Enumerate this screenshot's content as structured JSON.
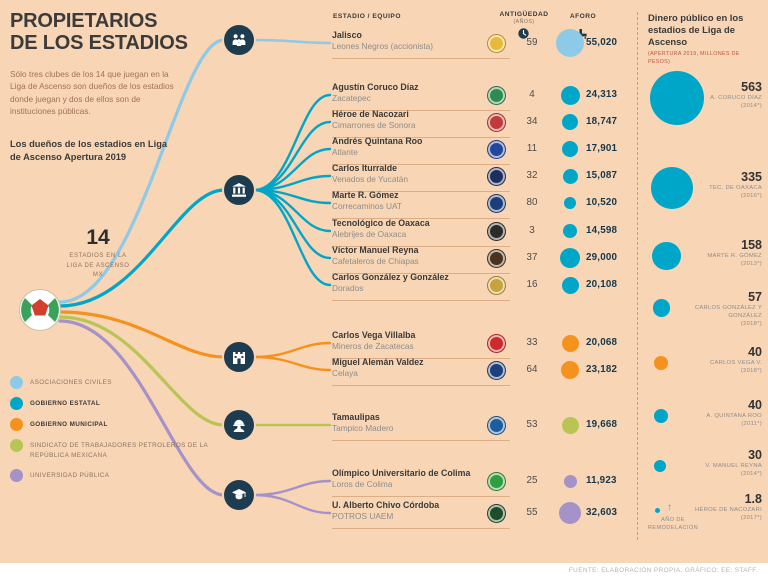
{
  "header": {
    "title_line1": "PROPIETARIOS",
    "title_line2": "DE LOS ESTADIOS",
    "intro": "Sólo tres clubes de los 14 que juegan en la Liga de Ascenso son dueños de los estadios donde juegan y dos de ellos son de instituciones públicas.",
    "subtitle": "Los dueños de los estadios en Liga de Ascenso Apertura 2019"
  },
  "stat": {
    "value": "14",
    "label": "ESTADIOS EN LA LIGA DE ASCENSO MX"
  },
  "columns": {
    "stadium": "ESTADIO / EQUIPO",
    "age": "ANTIGÜEDAD",
    "age_sub": "(AÑOS)",
    "capacity": "AFORO"
  },
  "legend": [
    {
      "label": "ASOCIACIONES CIVILES",
      "color": "#8ccae8",
      "emphasis": false
    },
    {
      "label": "GOBIERNO ESTATAL",
      "color": "#00a6c8",
      "emphasis": true
    },
    {
      "label": "GOBIERNO MUNICIPAL",
      "color": "#f5921e",
      "emphasis": true
    },
    {
      "label": "SINDICATO DE TRABAJADORES PETROLEROS DE LA REPÚBLICA MEXICANA",
      "color": "#b8c554",
      "emphasis": false
    },
    {
      "label": "UNIVERSIDAD PÚBLICA",
      "color": "#a492c9",
      "emphasis": false
    }
  ],
  "groups": [
    {
      "id": "asociaciones-civiles",
      "color": "#8ccae8",
      "rows": [
        {
          "stadium": "Jalisco",
          "team": "Leones Negros (accionista)",
          "years": "59",
          "capacity": "55,020",
          "capacity_num": 55020,
          "crest_color": "#e8b93b"
        }
      ]
    },
    {
      "id": "gobierno-estatal",
      "color": "#00a6c8",
      "rows": [
        {
          "stadium": "Agustín Coruco Díaz",
          "team": "Zacatepec",
          "years": "4",
          "capacity": "24,313",
          "capacity_num": 24313,
          "crest_color": "#2e8b4f"
        },
        {
          "stadium": "Héroe de Nacozari",
          "team": "Cimarrones de Sonora",
          "years": "34",
          "capacity": "18,747",
          "capacity_num": 18747,
          "crest_color": "#c23b3b"
        },
        {
          "stadium": "Andrés Quintana Roo",
          "team": "Atlante",
          "years": "11",
          "capacity": "17,901",
          "capacity_num": 17901,
          "crest_color": "#24479e"
        },
        {
          "stadium": "Carlos Iturralde",
          "team": "Venados de Yucatán",
          "years": "32",
          "capacity": "15,087",
          "capacity_num": 15087,
          "crest_color": "#1d2f5f"
        },
        {
          "stadium": "Marte R. Gómez",
          "team": "Correcaminos UAT",
          "years": "80",
          "capacity": "10,520",
          "capacity_num": 10520,
          "crest_color": "#1b3f7a"
        },
        {
          "stadium": "Tecnológico de Oaxaca",
          "team": "Alebrijes de Oaxaca",
          "years": "3",
          "capacity": "14,598",
          "capacity_num": 14598,
          "crest_color": "#2b2b2b"
        },
        {
          "stadium": "Víctor Manuel Reyna",
          "team": "Cafetaleros de Chiapas",
          "years": "37",
          "capacity": "29,000",
          "capacity_num": 29000,
          "crest_color": "#4a321d"
        },
        {
          "stadium": "Carlos González y González",
          "team": "Dorados",
          "years": "16",
          "capacity": "20,108",
          "capacity_num": 20108,
          "crest_color": "#c8a23c"
        }
      ]
    },
    {
      "id": "gobierno-municipal",
      "color": "#f5921e",
      "rows": [
        {
          "stadium": "Carlos Vega Villalba",
          "team": "Mineros de Zacatecas",
          "years": "33",
          "capacity": "20,068",
          "capacity_num": 20068,
          "crest_color": "#cf2a2a"
        },
        {
          "stadium": "Miguel Alemán Valdez",
          "team": "Celaya",
          "years": "64",
          "capacity": "23,182",
          "capacity_num": 23182,
          "crest_color": "#1c3f7e"
        }
      ]
    },
    {
      "id": "sindicato-petroleros",
      "color": "#b8c554",
      "rows": [
        {
          "stadium": "Tamaulipas",
          "team": "Tampico Madero",
          "years": "53",
          "capacity": "19,668",
          "capacity_num": 19668,
          "crest_color": "#1d5d9e"
        }
      ]
    },
    {
      "id": "universidad-publica",
      "color": "#a492c9",
      "rows": [
        {
          "stadium": "Olímpico Universitario de Colima",
          "team": "Loros de Colima",
          "years": "25",
          "capacity": "11,923",
          "capacity_num": 11923,
          "crest_color": "#2f9e41"
        },
        {
          "stadium": "U. Alberto Chivo Córdoba",
          "team": "POTROS UAEM",
          "years": "55",
          "capacity": "32,603",
          "capacity_num": 32603,
          "crest_color": "#1e4d2b"
        }
      ]
    }
  ],
  "money": {
    "title": "Dinero público en los estadios de Liga de Ascenso",
    "subtitle": "(APERTURA 2019, MILLONES DE PESOS)",
    "arrow_icon": "↑",
    "footnote": "AÑO DE REMODELACIÓN",
    "bubbles": [
      {
        "value": "563",
        "value_num": 563,
        "name": "A. CORUCO DÍAZ",
        "year": "(2014*)",
        "color": "#00a6c8"
      },
      {
        "value": "335",
        "value_num": 335,
        "name": "TEC. DE OAXACA",
        "year": "(2016*)",
        "color": "#00a6c8"
      },
      {
        "value": "158",
        "value_num": 158,
        "name": "MARTE R. GÓMEZ",
        "year": "(2013*)",
        "color": "#00a6c8"
      },
      {
        "value": "57",
        "value_num": 57,
        "name": "CARLOS GONZÁLEZ Y GONZÁLEZ",
        "year": "(2018*)",
        "color": "#00a6c8"
      },
      {
        "value": "40",
        "value_num": 40,
        "name": "CARLOS VEGA V.",
        "year": "(2018*)",
        "color": "#f5921e"
      },
      {
        "value": "40",
        "value_num": 40,
        "name": "A. QUINTANA ROO",
        "year": "(2011*)",
        "color": "#00a6c8"
      },
      {
        "value": "30",
        "value_num": 30,
        "name": "V. MANUEL REYNA",
        "year": "(2014*)",
        "color": "#00a6c8"
      },
      {
        "value": "1.8",
        "value_num": 1.8,
        "name": "HÉROE DE NACOZARI",
        "year": "(2017*)",
        "color": "#00a6c8"
      }
    ]
  },
  "footer": {
    "source": "FUENTE: ELABORACIÓN PROPIA. GRÁFICO: EE: STAFF."
  },
  "chart_data": [
    {
      "type": "table",
      "title": "Los dueños de los estadios en Liga de Ascenso Apertura 2019",
      "columns": [
        "Estadio",
        "Equipo",
        "Antigüedad (años)",
        "Aforo",
        "Propietario"
      ],
      "rows": [
        [
          "Jalisco",
          "Leones Negros (accionista)",
          59,
          55020,
          "Asociaciones civiles"
        ],
        [
          "Agustín Coruco Díaz",
          "Zacatepec",
          4,
          24313,
          "Gobierno estatal"
        ],
        [
          "Héroe de Nacozari",
          "Cimarrones de Sonora",
          34,
          18747,
          "Gobierno estatal"
        ],
        [
          "Andrés Quintana Roo",
          "Atlante",
          11,
          17901,
          "Gobierno estatal"
        ],
        [
          "Carlos Iturralde",
          "Venados de Yucatán",
          32,
          15087,
          "Gobierno estatal"
        ],
        [
          "Marte R. Gómez",
          "Correcaminos UAT",
          80,
          10520,
          "Gobierno estatal"
        ],
        [
          "Tecnológico de Oaxaca",
          "Alebrijes de Oaxaca",
          3,
          14598,
          "Gobierno estatal"
        ],
        [
          "Víctor Manuel Reyna",
          "Cafetaleros de Chiapas",
          37,
          29000,
          "Gobierno estatal"
        ],
        [
          "Carlos González y González",
          "Dorados",
          16,
          20108,
          "Gobierno estatal"
        ],
        [
          "Carlos Vega Villalba",
          "Mineros de Zacatecas",
          33,
          20068,
          "Gobierno municipal"
        ],
        [
          "Miguel Alemán Valdez",
          "Celaya",
          64,
          23182,
          "Gobierno municipal"
        ],
        [
          "Tamaulipas",
          "Tampico Madero",
          53,
          19668,
          "Sindicato de Trabajadores Petroleros de la República Mexicana"
        ],
        [
          "Olímpico Universitario de Colima",
          "Loros de Colima",
          25,
          11923,
          "Universidad pública"
        ],
        [
          "U. Alberto Chivo Córdoba",
          "POTROS UAEM",
          55,
          32603,
          "Universidad pública"
        ]
      ]
    },
    {
      "type": "bubble",
      "title": "Dinero público en los estadios de Liga de Ascenso (Apertura 2019, millones de pesos)",
      "categories": [
        "A. Coruco Díaz (2014)",
        "Tec. de Oaxaca (2016)",
        "Marte R. Gómez (2013)",
        "Carlos González y González (2018)",
        "Carlos Vega V. (2018)",
        "A. Quintana Roo (2011)",
        "V. Manuel Reyna (2014)",
        "Héroe de Nacozari (2017)"
      ],
      "values": [
        563,
        335,
        158,
        57,
        40,
        40,
        30,
        1.8
      ],
      "note": "* año de remodelación"
    }
  ]
}
